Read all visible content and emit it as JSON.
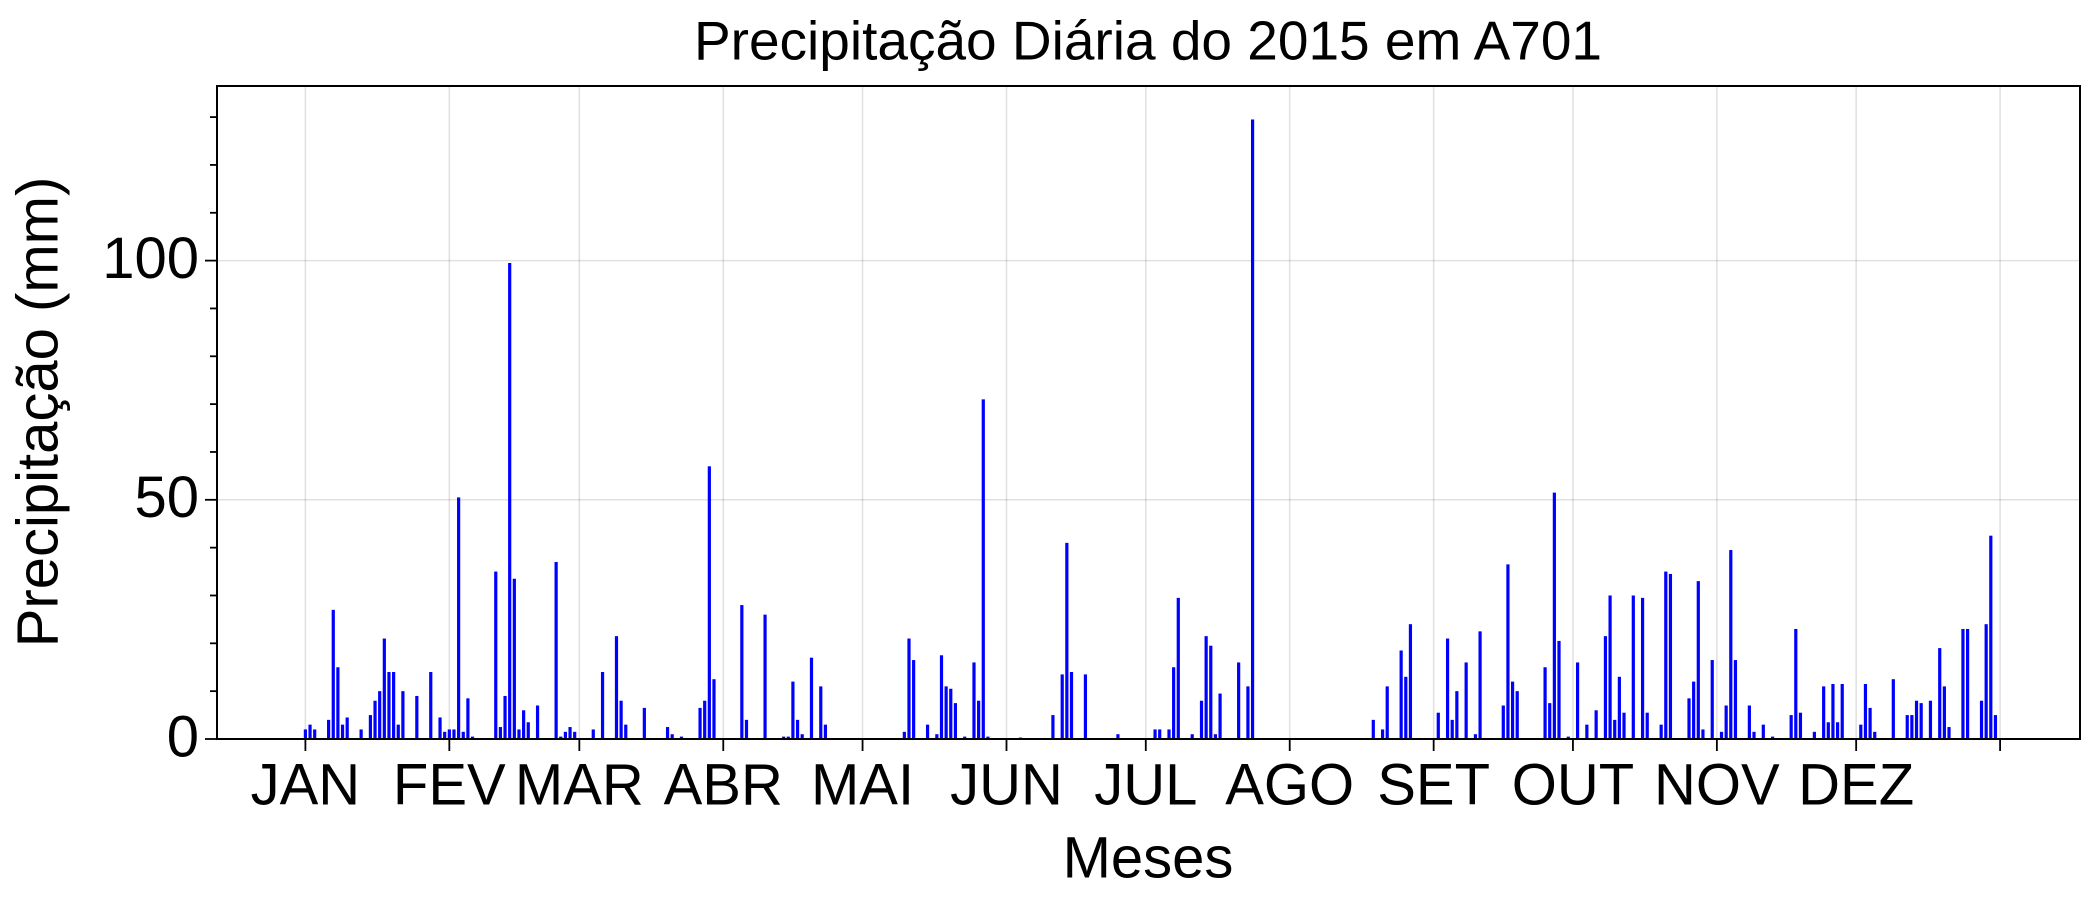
{
  "chart_data": {
    "type": "bar",
    "title": "Precipitação Diária do 2015 em A701",
    "xlabel": "Meses",
    "ylabel": "Precipitação (mm)",
    "color": "#0000ff",
    "grid": true,
    "ylim": [
      0,
      136.5
    ],
    "yticks": [
      0,
      50,
      100
    ],
    "yminorticks": [
      10,
      20,
      30,
      40,
      60,
      70,
      80,
      90,
      110,
      120,
      130
    ],
    "categories": [
      "JAN",
      null,
      null,
      null,
      null,
      null,
      null,
      null,
      null,
      null,
      null,
      null,
      null,
      null,
      null,
      null,
      null,
      null,
      null,
      null,
      null,
      null,
      null,
      null,
      null,
      null,
      null,
      null,
      null,
      null,
      null,
      "FEV",
      null,
      null,
      null,
      null,
      null,
      null,
      null,
      null,
      null,
      null,
      null,
      null,
      null,
      null,
      null,
      null,
      null,
      null,
      null,
      null,
      null,
      null,
      null,
      null,
      null,
      null,
      null,
      "MAR",
      null,
      null,
      null,
      null,
      null,
      null,
      null,
      null,
      null,
      null,
      null,
      null,
      null,
      null,
      null,
      null,
      null,
      null,
      null,
      null,
      null,
      null,
      null,
      null,
      null,
      null,
      null,
      null,
      null,
      null,
      "ABR",
      null,
      null,
      null,
      null,
      null,
      null,
      null,
      null,
      null,
      null,
      null,
      null,
      null,
      null,
      null,
      null,
      null,
      null,
      null,
      null,
      null,
      null,
      null,
      null,
      null,
      null,
      null,
      null,
      null,
      "MAI",
      null,
      null,
      null,
      null,
      null,
      null,
      null,
      null,
      null,
      null,
      null,
      null,
      null,
      null,
      null,
      null,
      null,
      null,
      null,
      null,
      null,
      null,
      null,
      null,
      null,
      null,
      null,
      null,
      null,
      null,
      "JUN",
      null,
      null,
      null,
      null,
      null,
      null,
      null,
      null,
      null,
      null,
      null,
      null,
      null,
      null,
      null,
      null,
      null,
      null,
      null,
      null,
      null,
      null,
      null,
      null,
      null,
      null,
      null,
      null,
      null,
      "JUL",
      null,
      null,
      null,
      null,
      null,
      null,
      null,
      null,
      null,
      null,
      null,
      null,
      null,
      null,
      null,
      null,
      null,
      null,
      null,
      null,
      null,
      null,
      null,
      null,
      null,
      null,
      null,
      null,
      null,
      null,
      "AGO",
      null,
      null,
      null,
      null,
      null,
      null,
      null,
      null,
      null,
      null,
      null,
      null,
      null,
      null,
      null,
      null,
      null,
      null,
      null,
      null,
      null,
      null,
      null,
      null,
      null,
      null,
      null,
      null,
      null,
      null,
      "SET",
      null,
      null,
      null,
      null,
      null,
      null,
      null,
      null,
      null,
      null,
      null,
      null,
      null,
      null,
      null,
      null,
      null,
      null,
      null,
      null,
      null,
      null,
      null,
      null,
      null,
      null,
      null,
      null,
      null,
      "OUT",
      null,
      null,
      null,
      null,
      null,
      null,
      null,
      null,
      null,
      null,
      null,
      null,
      null,
      null,
      null,
      null,
      null,
      null,
      null,
      null,
      null,
      null,
      null,
      null,
      null,
      null,
      null,
      null,
      null,
      null,
      "NOV",
      null,
      null,
      null,
      null,
      null,
      null,
      null,
      null,
      null,
      null,
      null,
      null,
      null,
      null,
      null,
      null,
      null,
      null,
      null,
      null,
      null,
      null,
      null,
      null,
      null,
      null,
      null,
      null,
      null,
      "DEZ",
      null,
      null,
      null,
      null,
      null,
      null,
      null,
      null,
      null,
      null,
      null,
      null,
      null,
      null,
      null,
      null,
      null,
      null,
      null,
      null,
      null,
      null,
      null,
      null,
      null,
      null,
      null,
      null,
      null,
      null
    ],
    "values": [
      2,
      3,
      2,
      0,
      0,
      4,
      27,
      15,
      3,
      4.5,
      0,
      0,
      2,
      0,
      5,
      8,
      10,
      21,
      14,
      14,
      3,
      10,
      0,
      0,
      9,
      0,
      0,
      14,
      0,
      4.5,
      1.5,
      2,
      2,
      50.5,
      1.5,
      8.5,
      0.5,
      0,
      0,
      0,
      0,
      35,
      2.5,
      9,
      99.5,
      33.5,
      2,
      6,
      3.5,
      0,
      7,
      0,
      0,
      0,
      37,
      0.5,
      1.5,
      2.5,
      1.5,
      0,
      0,
      0,
      2,
      0,
      14,
      0,
      0,
      21.5,
      8,
      3,
      0,
      0,
      0,
      6.5,
      0,
      0,
      0,
      0,
      2.5,
      1,
      0,
      0.5,
      0,
      0,
      0,
      6.5,
      8,
      57,
      12.5,
      0,
      0,
      0,
      0,
      0,
      28,
      4,
      0,
      0,
      0,
      26,
      0,
      0,
      0,
      0.5,
      0.5,
      12,
      4,
      1,
      0,
      17,
      0,
      11,
      3,
      0,
      0,
      0,
      0,
      0,
      0,
      0,
      0,
      0,
      0,
      0,
      0,
      0,
      0,
      0,
      0,
      1.5,
      21,
      16.5,
      0,
      0,
      3,
      0,
      1,
      17.5,
      11,
      10.5,
      7.5,
      0,
      0.5,
      0,
      16,
      8,
      71,
      0.5,
      0,
      0,
      0,
      0,
      0,
      0,
      0.3,
      0,
      0,
      0,
      0,
      0,
      0,
      5,
      0,
      13.5,
      41,
      14,
      0,
      0,
      13.5,
      0,
      0,
      0,
      0,
      0,
      0,
      1,
      0,
      0,
      0,
      0,
      0,
      0,
      0,
      2,
      2,
      0,
      2,
      15,
      29.5,
      0,
      0,
      1,
      0,
      8,
      21.5,
      19.5,
      1,
      9.5,
      0,
      0,
      0,
      16,
      0,
      11,
      129.5,
      0,
      0,
      0,
      0,
      0,
      0,
      0,
      0,
      0,
      0,
      0,
      0,
      0,
      0,
      0,
      0,
      0,
      0,
      0,
      0,
      0,
      0,
      0,
      0,
      0,
      4,
      0,
      2,
      11,
      0,
      0,
      18.5,
      13,
      24,
      0,
      0,
      0,
      0,
      0,
      5.5,
      0,
      21,
      4,
      10,
      0,
      16,
      0,
      1,
      22.5,
      0,
      0,
      0,
      0,
      7,
      36.5,
      12,
      10,
      0,
      0,
      0,
      0,
      0,
      15,
      7.5,
      51.5,
      20.5,
      0,
      0.5,
      0,
      16,
      0,
      3,
      0,
      6,
      0,
      21.5,
      30,
      4,
      13,
      5.5,
      0,
      30,
      0,
      29.5,
      5.5,
      0,
      0,
      3,
      35,
      34.5,
      0,
      0,
      0,
      8.5,
      12,
      33,
      2,
      0,
      16.5,
      0,
      1.5,
      7,
      39.5,
      16.5,
      0,
      0,
      7,
      1.5,
      0,
      3,
      0,
      0.5,
      0,
      0,
      0,
      5,
      23,
      5.5,
      0,
      0,
      1.5,
      0,
      11,
      3.5,
      11.5,
      3.5,
      11.5,
      0,
      0,
      0,
      3,
      11.5,
      6.5,
      1.5,
      0,
      0,
      0,
      12.5,
      0,
      0,
      5,
      5,
      8,
      7.5,
      0,
      8,
      0,
      19,
      11,
      2.5,
      0,
      0,
      23,
      23,
      0,
      0,
      8,
      24,
      42.5,
      5
    ]
  }
}
